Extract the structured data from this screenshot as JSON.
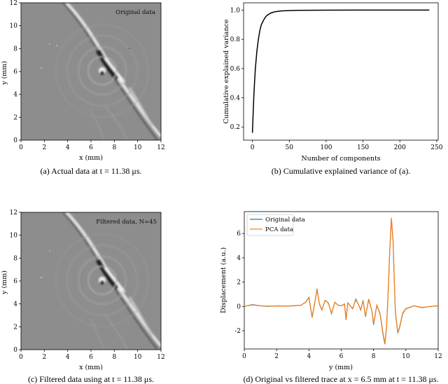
{
  "captions": {
    "a": "(a) Actual data at t = 11.38 μs.",
    "b": "(b) Cumulative explained variance of (a).",
    "c": "(c) Filtered data using at t = 11.38 μs.",
    "d": "(d) Original vs filtered trace at x = 6.5 mm at t = 11.38 μs."
  },
  "colors": {
    "original": "#1f77b4",
    "pca": "#ff7f0e",
    "curve": "#000000"
  },
  "chart_data": [
    {
      "id": "a",
      "type": "heatmap",
      "annotation": "Original data",
      "xlabel": "x (mm)",
      "ylabel": "y (mm)",
      "xlim": [
        0,
        12
      ],
      "ylim": [
        0,
        12
      ],
      "xticks": [
        0,
        2,
        4,
        6,
        8,
        10,
        12
      ],
      "yticks": [
        0,
        2,
        4,
        6,
        8,
        10,
        12
      ],
      "colormap": "grayscale"
    },
    {
      "id": "b",
      "type": "line",
      "xlabel": "Number of components",
      "ylabel": "Cumulative explained variance",
      "xlim": [
        -12,
        252
      ],
      "ylim": [
        0.11,
        1.05
      ],
      "xticks": [
        0,
        50,
        100,
        150,
        200,
        250
      ],
      "yticks": [
        0.2,
        0.4,
        0.6,
        0.8,
        1.0
      ],
      "ytick_labels": [
        "0.2",
        "0.4",
        "0.6",
        "0.8",
        "1.0"
      ],
      "x": [
        0,
        1,
        2,
        3,
        4,
        5,
        6,
        8,
        10,
        12,
        15,
        18,
        20,
        25,
        30,
        35,
        40,
        50,
        60,
        80,
        100,
        150,
        200,
        240
      ],
      "y": [
        0.16,
        0.3,
        0.42,
        0.52,
        0.6,
        0.66,
        0.72,
        0.8,
        0.86,
        0.9,
        0.93,
        0.955,
        0.965,
        0.98,
        0.988,
        0.992,
        0.995,
        0.997,
        0.998,
        0.999,
        0.9995,
        1.0,
        1.0,
        1.0
      ]
    },
    {
      "id": "c",
      "type": "heatmap",
      "annotation": "Filtered data, N=45",
      "xlabel": "x (mm)",
      "ylabel": "y (mm)",
      "xlim": [
        0,
        12
      ],
      "ylim": [
        0,
        12
      ],
      "xticks": [
        0,
        2,
        4,
        6,
        8,
        10,
        12
      ],
      "yticks": [
        0,
        2,
        4,
        6,
        8,
        10,
        12
      ],
      "colormap": "grayscale"
    },
    {
      "id": "d",
      "type": "line",
      "xlabel": "y (mm)",
      "ylabel": "Displacement (a.u.)",
      "xlim": [
        0,
        12
      ],
      "ylim": [
        -3.5,
        7.8
      ],
      "xticks": [
        0,
        2,
        4,
        6,
        8,
        10,
        12
      ],
      "yticks": [
        -2,
        0,
        2,
        4,
        6
      ],
      "legend": "top-left",
      "series": [
        {
          "name": "Original data",
          "x": [
            0,
            0.5,
            1,
            1.5,
            2,
            2.5,
            3,
            3.5,
            3.8,
            4.0,
            4.2,
            4.4,
            4.5,
            4.65,
            4.8,
            5.0,
            5.2,
            5.4,
            5.6,
            5.8,
            6.0,
            6.2,
            6.3,
            6.4,
            6.5,
            6.7,
            6.9,
            7.1,
            7.2,
            7.35,
            7.5,
            7.7,
            7.9,
            8.0,
            8.2,
            8.4,
            8.6,
            8.7,
            8.8,
            8.9,
            9.0,
            9.1,
            9.2,
            9.35,
            9.5,
            9.6,
            9.8,
            10.0,
            10.5,
            11.0,
            11.5,
            12.0
          ],
          "y": [
            0,
            0.15,
            0.05,
            0.0,
            0.05,
            0.02,
            0.05,
            0.1,
            0.35,
            0.75,
            -0.9,
            0.6,
            1.45,
            0.2,
            -0.3,
            0.5,
            0.3,
            -0.6,
            0.35,
            0.1,
            0.05,
            0.2,
            -1.1,
            0.3,
            0.15,
            -0.2,
            0.6,
            0.05,
            -0.3,
            0.5,
            -0.85,
            0.6,
            -0.4,
            -1.5,
            0.1,
            -0.6,
            -2.4,
            -3.1,
            -1.8,
            1.0,
            4.5,
            7.2,
            5.5,
            -0.5,
            -2.2,
            -1.8,
            -0.6,
            -0.2,
            0.05,
            -0.1,
            0.0,
            0.05
          ]
        },
        {
          "name": "PCA data",
          "x": [
            0,
            0.5,
            1,
            1.5,
            2,
            2.5,
            3,
            3.5,
            3.8,
            4.0,
            4.2,
            4.4,
            4.5,
            4.65,
            4.8,
            5.0,
            5.2,
            5.4,
            5.6,
            5.8,
            6.0,
            6.2,
            6.3,
            6.4,
            6.5,
            6.7,
            6.9,
            7.1,
            7.2,
            7.35,
            7.5,
            7.7,
            7.9,
            8.0,
            8.2,
            8.4,
            8.6,
            8.7,
            8.8,
            8.9,
            9.0,
            9.1,
            9.2,
            9.35,
            9.5,
            9.6,
            9.8,
            10.0,
            10.5,
            11.0,
            11.5,
            12.0
          ],
          "y": [
            0,
            0.12,
            0.05,
            0.02,
            0.04,
            0.02,
            0.04,
            0.1,
            0.33,
            0.72,
            -0.85,
            0.58,
            1.4,
            0.22,
            -0.28,
            0.48,
            0.28,
            -0.55,
            0.33,
            0.1,
            0.05,
            0.18,
            -1.05,
            0.28,
            0.15,
            -0.18,
            0.55,
            0.05,
            -0.28,
            0.48,
            -0.8,
            0.55,
            -0.38,
            -1.4,
            0.1,
            -0.55,
            -2.3,
            -3.05,
            -1.75,
            1.0,
            4.6,
            7.3,
            5.6,
            -0.45,
            -2.15,
            -1.75,
            -0.55,
            -0.18,
            0.05,
            -0.08,
            0.0,
            0.04
          ]
        }
      ]
    }
  ]
}
